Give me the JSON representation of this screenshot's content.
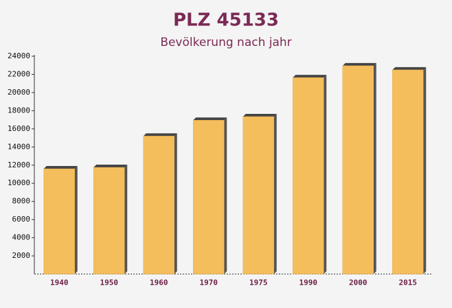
{
  "chart_data": {
    "type": "bar",
    "title": "PLZ 45133",
    "subtitle": "Bevölkerung nach jahr",
    "categories": [
      "1940",
      "1950",
      "1960",
      "1970",
      "1975",
      "1990",
      "2000",
      "2015"
    ],
    "values": [
      11600,
      11750,
      15200,
      16950,
      17350,
      21650,
      22950,
      22500
    ],
    "color": "#f5be5c",
    "ylim": [
      0,
      24000
    ],
    "yticks": [
      2000,
      4000,
      6000,
      8000,
      10000,
      12000,
      14000,
      16000,
      18000,
      20000,
      22000,
      24000
    ],
    "grid": false
  }
}
